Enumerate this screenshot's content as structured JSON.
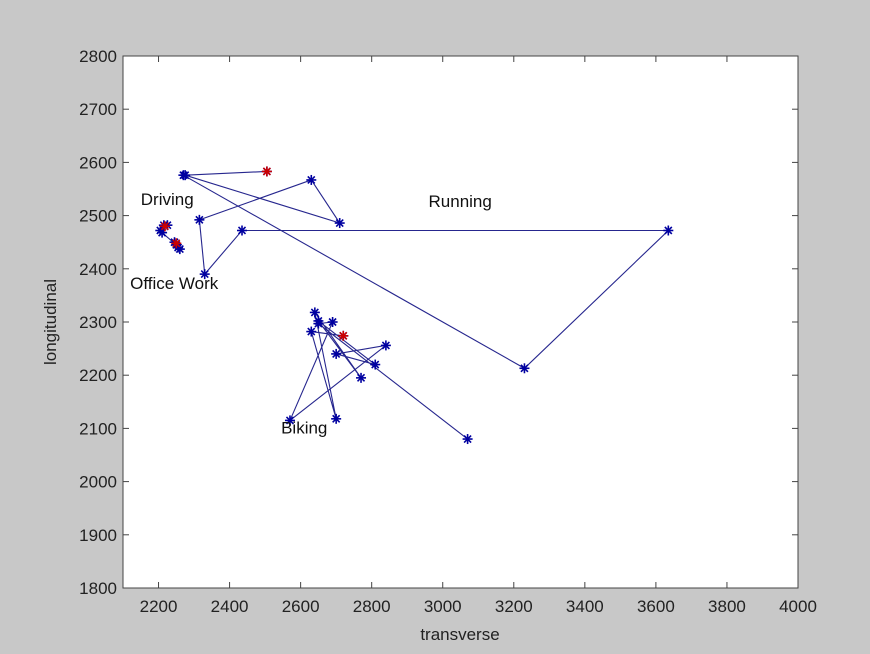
{
  "chart_data": {
    "type": "scatter",
    "title": "",
    "xlabel": "transverse",
    "ylabel": "longitudinal",
    "xlim": [
      2100,
      4000
    ],
    "ylim": [
      1800,
      2800
    ],
    "xticks": [
      2200,
      2400,
      2600,
      2800,
      3000,
      3200,
      3400,
      3600,
      3800,
      4000
    ],
    "yticks": [
      1800,
      1900,
      2000,
      2100,
      2200,
      2300,
      2400,
      2500,
      2600,
      2700,
      2800
    ],
    "grid": false,
    "colors": {
      "line": "#00007a",
      "marker": "#0000a0",
      "highlight": "#cc0000"
    },
    "series": [
      {
        "points": [
          [
            2505,
            2583
          ],
          [
            2275,
            2576
          ],
          [
            2710,
            2486
          ],
          [
            2630,
            2567
          ],
          [
            2315,
            2492
          ],
          [
            2330,
            2390
          ],
          [
            2435,
            2472
          ],
          [
            3635,
            2472
          ],
          [
            3230,
            2213
          ],
          [
            2270,
            2576
          ]
        ]
      },
      {
        "points": [
          [
            2720,
            2274
          ],
          [
            2630,
            2282
          ],
          [
            2700,
            2118
          ],
          [
            2640,
            2318
          ],
          [
            2770,
            2195
          ],
          [
            2650,
            2302
          ],
          [
            2810,
            2220
          ],
          [
            2700,
            2240
          ],
          [
            2840,
            2256
          ],
          [
            2570,
            2115
          ],
          [
            2690,
            2300
          ],
          [
            2650,
            2297
          ],
          [
            3070,
            2080
          ]
        ]
      },
      {
        "points": [
          [
            2215,
            2482
          ],
          [
            2205,
            2472
          ],
          [
            2225,
            2482
          ],
          [
            2210,
            2468
          ],
          [
            2250,
            2445
          ],
          [
            2260,
            2437
          ],
          [
            2245,
            2450
          ],
          [
            2255,
            2440
          ]
        ]
      }
    ],
    "highlight_points": [
      [
        2505,
        2583
      ],
      [
        2720,
        2274
      ],
      [
        2218,
        2480
      ],
      [
        2250,
        2448
      ]
    ],
    "annotations": [
      {
        "text": "Driving",
        "x": 2150,
        "y": 2520
      },
      {
        "text": "Office Work",
        "x": 2120,
        "y": 2362
      },
      {
        "text": "Running",
        "x": 2960,
        "y": 2516
      },
      {
        "text": "Biking",
        "x": 2545,
        "y": 2090
      }
    ]
  }
}
